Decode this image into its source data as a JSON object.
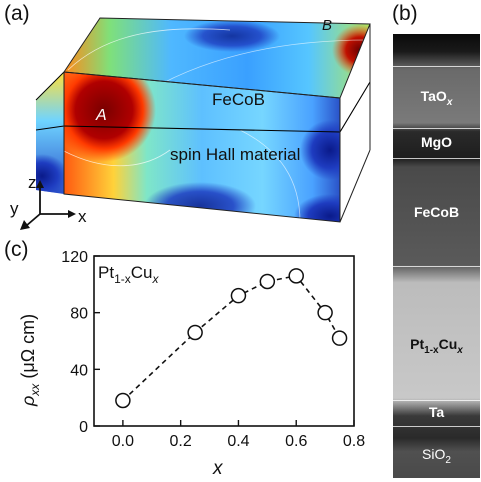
{
  "panels": {
    "a": {
      "label": "(a)",
      "point_a": "A",
      "point_b": "B",
      "layer_top": "FeCoB",
      "layer_bottom": "spin Hall material",
      "axis_z": "z",
      "axis_y": "y",
      "axis_x": "x"
    },
    "b": {
      "label": "(b)",
      "layers": [
        {
          "name": "TaOx",
          "text": "TaO",
          "sub": "x"
        },
        {
          "name": "MgO",
          "text": "MgO",
          "sub": ""
        },
        {
          "name": "FeCoB",
          "text": "FeCoB",
          "sub": ""
        },
        {
          "name": "Pt1-xCux",
          "text": "Pt",
          "sub": "1-x",
          "text2": "Cu",
          "sub2": "x"
        },
        {
          "name": "Ta",
          "text": "Ta",
          "sub": ""
        },
        {
          "name": "SiO2",
          "text": "SiO",
          "sub": "2"
        }
      ]
    },
    "c": {
      "label": "(c)",
      "inset_label_main": "Pt",
      "inset_label_sub1": "1-x",
      "inset_label_main2": "Cu",
      "inset_label_sub2": "x"
    }
  },
  "chart_data": {
    "type": "scatter",
    "xlabel": "x",
    "ylabel": "ρxx (μΩ cm)",
    "ylabel_symbol": "ρ",
    "ylabel_sub": "xx",
    "ylabel_unit": "(μΩ cm)",
    "xlim": [
      -0.1,
      0.8
    ],
    "ylim": [
      0,
      120
    ],
    "x_ticks": [
      0.0,
      0.2,
      0.4,
      0.6,
      0.8
    ],
    "x_tick_labels": [
      "0.0",
      "0.2",
      "0.4",
      "0.6",
      "0.8"
    ],
    "y_ticks": [
      0,
      40,
      80,
      120
    ],
    "y_tick_labels": [
      "0",
      "40",
      "80",
      "120"
    ],
    "series": [
      {
        "x": [
          0.0,
          0.25,
          0.4,
          0.5,
          0.6,
          0.7,
          0.75
        ],
        "y": [
          18,
          66,
          92,
          102,
          106,
          80,
          62
        ],
        "marker": "open-circle",
        "line": "dashed"
      }
    ],
    "grid": false
  }
}
